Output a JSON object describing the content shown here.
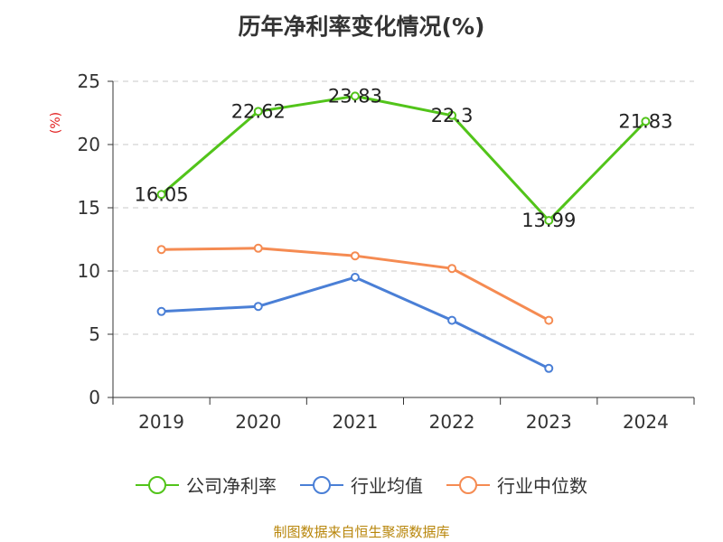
{
  "chart_data": {
    "type": "line",
    "title": "历年净利率变化情况(%)",
    "y_unit": "(%)",
    "categories": [
      "2019",
      "2020",
      "2021",
      "2022",
      "2023",
      "2024"
    ],
    "ylim": [
      0,
      25
    ],
    "yticks": [
      0,
      5,
      10,
      15,
      20,
      25
    ],
    "grid": true,
    "legend_position": "bottom",
    "series": [
      {
        "name": "公司净利率",
        "color": "#52c41a",
        "values": [
          16.05,
          22.62,
          23.83,
          22.3,
          13.99,
          21.83
        ],
        "labels": [
          "16.05",
          "22.62",
          "23.83",
          "22.3",
          "13.99",
          "21.83"
        ]
      },
      {
        "name": "行业均值",
        "color": "#4a7fd6",
        "values": [
          6.8,
          7.2,
          9.5,
          6.1,
          2.3,
          null
        ]
      },
      {
        "name": "行业中位数",
        "color": "#f58b52",
        "values": [
          11.7,
          11.8,
          11.2,
          10.2,
          6.1,
          null
        ]
      }
    ]
  },
  "source": "制图数据来自恒生聚源数据库"
}
